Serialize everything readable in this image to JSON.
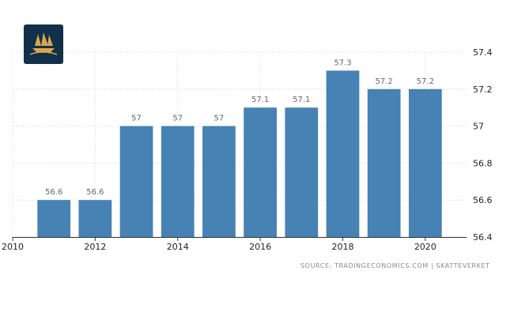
{
  "logo": {
    "icon": "sailboat-logo-icon",
    "color": "#123049",
    "accent": "#d9a74c"
  },
  "source_text": "SOURCE: TRADINGECONOMICS.COM | SKATTEVERKET",
  "chart_data": {
    "type": "bar",
    "categories": [
      "2011",
      "2012",
      "2013",
      "2014",
      "2015",
      "2016",
      "2017",
      "2018",
      "2019",
      "2020"
    ],
    "values": [
      56.6,
      56.6,
      57.0,
      57.0,
      57.0,
      57.1,
      57.1,
      57.3,
      57.2,
      57.2
    ],
    "value_labels": [
      "56.6",
      "56.6",
      "57",
      "57",
      "57",
      "57.1",
      "57.1",
      "57.3",
      "57.2",
      "57.2"
    ],
    "x_tick_labels": [
      "2010",
      "2012",
      "2014",
      "2016",
      "2018",
      "2020"
    ],
    "x_tick_values": [
      2010,
      2012,
      2014,
      2016,
      2018,
      2020
    ],
    "y_tick_labels": [
      "56.4",
      "56.6",
      "56.8",
      "57",
      "57.2",
      "57.4"
    ],
    "y_tick_values": [
      56.4,
      56.6,
      56.8,
      57.0,
      57.2,
      57.4
    ],
    "ylim": [
      56.4,
      57.4
    ],
    "y_axis_position": "right",
    "grid": true,
    "bar_color": "#4682b4",
    "title": "",
    "xlabel": "",
    "ylabel": ""
  }
}
